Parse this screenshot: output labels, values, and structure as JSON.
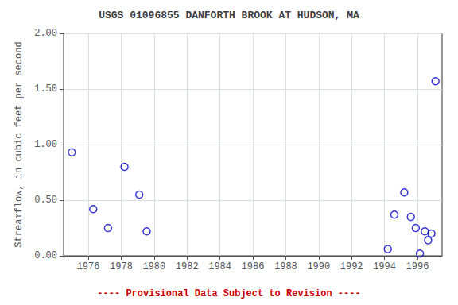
{
  "chart_data": {
    "type": "scatter",
    "title": "USGS 01096855 DANFORTH BROOK AT HUDSON, MA",
    "ylabel": "Streamflow, in cubic feet per second",
    "x": [
      1975.0,
      1976.3,
      1977.2,
      1978.2,
      1979.1,
      1979.55,
      1994.2,
      1994.6,
      1995.2,
      1995.6,
      1995.9,
      1996.15,
      1996.45,
      1996.65,
      1996.85,
      1997.1
    ],
    "values": [
      0.93,
      0.42,
      0.25,
      0.8,
      0.55,
      0.22,
      0.06,
      0.37,
      0.57,
      0.35,
      0.25,
      0.02,
      0.22,
      0.14,
      0.2,
      1.57
    ],
    "color": "#0000CC",
    "marker": "circle",
    "xlim": [
      1974.5,
      1997.5
    ],
    "xticks": [
      1976,
      1978,
      1980,
      1982,
      1984,
      1986,
      1988,
      1990,
      1992,
      1994,
      1996
    ],
    "ylim": [
      0.0,
      2.0
    ],
    "yticks": [
      {
        "value": 0.0,
        "label": "0.00"
      },
      {
        "value": 0.5,
        "label": "0.50"
      },
      {
        "value": 1.0,
        "label": "1.00"
      },
      {
        "value": 1.5,
        "label": "1.50"
      },
      {
        "value": 2.0,
        "label": "2.00"
      }
    ],
    "grid": true,
    "annotations": [
      {
        "text": "---- Provisional Data Subject to Revision ----",
        "color": "#CC0000"
      }
    ]
  }
}
